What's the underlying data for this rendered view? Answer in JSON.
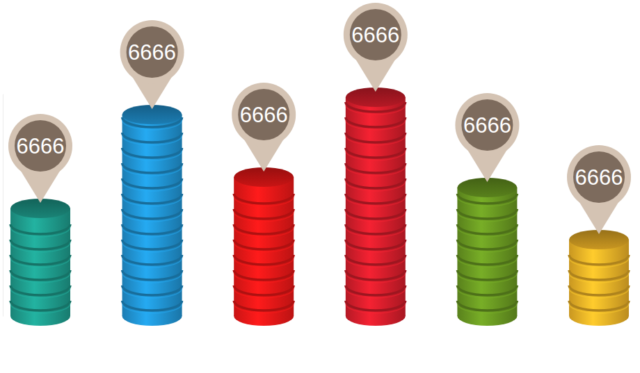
{
  "chart_data": {
    "type": "bar",
    "categories": [
      null,
      null,
      null,
      null,
      null,
      null
    ],
    "values": [
      155,
      290,
      200,
      315,
      185,
      110
    ],
    "colors": [
      "#1f9e8e",
      "#2196d6",
      "#f01818",
      "#d81e2c",
      "#6a9a22",
      "#f0b428"
    ],
    "annotations": [
      "6666",
      "6666",
      "6666",
      "6666",
      "6666",
      "6666"
    ],
    "ylim": [
      0,
      320
    ],
    "tick_labels": false,
    "grid": false
  }
}
